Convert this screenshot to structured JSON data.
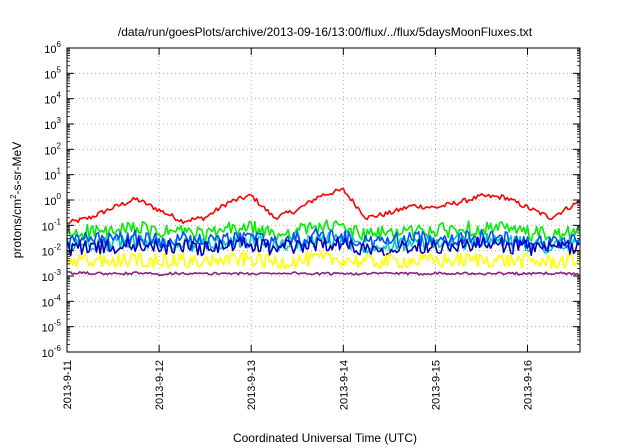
{
  "chart_data": {
    "type": "line",
    "title": "/data/run/goesPlots/archive/2013-09-16/13:00/flux/../flux/5daysMoonFluxes.txt",
    "xlabel": "Coordinated Universal Time (UTC)",
    "ylabel": "protons/cm²-s-sr-MeV",
    "ylabel_parts": {
      "before": "protons/cm",
      "sup": "2",
      "after": "-s-sr-MeV"
    },
    "yscale": "log",
    "ylim": [
      1e-06,
      1000000.0
    ],
    "y_ticks": [
      {
        "mant": "10",
        "exp": "-6"
      },
      {
        "mant": "10",
        "exp": "-5"
      },
      {
        "mant": "10",
        "exp": "-4"
      },
      {
        "mant": "10",
        "exp": "-3"
      },
      {
        "mant": "10",
        "exp": "-2"
      },
      {
        "mant": "10",
        "exp": "-1"
      },
      {
        "mant": "10",
        "exp": "0"
      },
      {
        "mant": "10",
        "exp": "1"
      },
      {
        "mant": "10",
        "exp": "2"
      },
      {
        "mant": "10",
        "exp": "3"
      },
      {
        "mant": "10",
        "exp": "4"
      },
      {
        "mant": "10",
        "exp": "5"
      },
      {
        "mant": "10",
        "exp": "6"
      }
    ],
    "x_ticks": [
      "2013-9-11",
      "2013-9-12",
      "2013-9-13",
      "2013-9-14",
      "2013-9-15",
      "2013-9-16"
    ],
    "xlim": [
      0,
      5.57
    ],
    "grid": true,
    "legend": "none",
    "series": [
      {
        "color": "#ff0000",
        "x": [
          0,
          0.25,
          0.5,
          0.75,
          1,
          1.25,
          1.5,
          1.75,
          2,
          2.25,
          2.5,
          2.75,
          3,
          3.25,
          3.5,
          3.75,
          4,
          4.25,
          4.5,
          4.75,
          5,
          5.25,
          5.57
        ],
        "values": [
          0.12,
          0.2,
          0.5,
          1.1,
          0.4,
          0.15,
          0.2,
          0.8,
          1.5,
          0.2,
          0.4,
          1.5,
          2.5,
          0.2,
          0.3,
          0.6,
          0.5,
          0.8,
          1.4,
          1.3,
          0.5,
          0.2,
          0.9
        ]
      },
      {
        "color": "#00ee00",
        "x": [
          0,
          0.25,
          0.5,
          0.75,
          1,
          1.25,
          1.5,
          1.75,
          2,
          2.25,
          2.5,
          2.75,
          3,
          3.25,
          3.5,
          3.75,
          4,
          4.25,
          4.5,
          4.75,
          5,
          5.25,
          5.57
        ],
        "values": [
          0.04,
          0.06,
          0.05,
          0.08,
          0.05,
          0.06,
          0.04,
          0.07,
          0.08,
          0.04,
          0.06,
          0.09,
          0.08,
          0.04,
          0.05,
          0.06,
          0.06,
          0.07,
          0.08,
          0.07,
          0.05,
          0.04,
          0.05
        ]
      },
      {
        "color": "#00c8c8",
        "x": [
          0,
          0.25,
          0.5,
          0.75,
          1,
          1.25,
          1.5,
          1.75,
          2,
          2.25,
          2.5,
          2.75,
          3,
          3.25,
          3.5,
          3.75,
          4,
          4.25,
          4.5,
          4.75,
          5,
          5.25,
          5.57
        ],
        "values": [
          0.015,
          0.02,
          0.018,
          0.025,
          0.018,
          0.02,
          0.015,
          0.022,
          0.025,
          0.015,
          0.02,
          0.028,
          0.025,
          0.015,
          0.018,
          0.02,
          0.02,
          0.022,
          0.025,
          0.022,
          0.018,
          0.015,
          0.02
        ]
      },
      {
        "color": "#0050ff",
        "x": [
          0,
          0.25,
          0.5,
          0.75,
          1,
          1.25,
          1.5,
          1.75,
          2,
          2.25,
          2.5,
          2.75,
          3,
          3.25,
          3.5,
          3.75,
          4,
          4.25,
          4.5,
          4.75,
          5,
          5.25,
          5.57
        ],
        "values": [
          0.02,
          0.03,
          0.025,
          0.035,
          0.025,
          0.03,
          0.02,
          0.03,
          0.035,
          0.02,
          0.03,
          0.04,
          0.035,
          0.02,
          0.025,
          0.03,
          0.03,
          0.03,
          0.035,
          0.03,
          0.025,
          0.02,
          0.025
        ]
      },
      {
        "color": "#0000c0",
        "x": [
          0,
          0.25,
          0.5,
          0.75,
          1,
          1.25,
          1.5,
          1.75,
          2,
          2.25,
          2.5,
          2.75,
          3,
          3.25,
          3.5,
          3.75,
          4,
          4.25,
          4.5,
          4.75,
          5,
          5.25,
          5.57
        ],
        "values": [
          0.012,
          0.015,
          0.013,
          0.018,
          0.013,
          0.015,
          0.012,
          0.016,
          0.018,
          0.012,
          0.015,
          0.02,
          0.018,
          0.012,
          0.013,
          0.015,
          0.015,
          0.016,
          0.018,
          0.016,
          0.013,
          0.012,
          0.015
        ]
      },
      {
        "color": "#ffff00",
        "x": [
          0,
          0.25,
          0.5,
          0.75,
          1,
          1.25,
          1.5,
          1.75,
          2,
          2.25,
          2.5,
          2.75,
          3,
          3.25,
          3.5,
          3.75,
          4,
          4.25,
          4.5,
          4.75,
          5,
          5.25,
          5.57
        ],
        "values": [
          0.0035,
          0.004,
          0.0038,
          0.0045,
          0.004,
          0.0042,
          0.0036,
          0.0044,
          0.0045,
          0.0035,
          0.004,
          0.0048,
          0.0045,
          0.0036,
          0.0038,
          0.004,
          0.004,
          0.0042,
          0.0044,
          0.0042,
          0.0038,
          0.0036,
          0.004
        ]
      },
      {
        "color": "#8b2080",
        "x": [
          0,
          0.25,
          0.5,
          0.75,
          1,
          1.25,
          1.5,
          1.75,
          2,
          2.25,
          2.5,
          2.75,
          3,
          3.25,
          3.5,
          3.75,
          4,
          4.25,
          4.5,
          4.75,
          5,
          5.25,
          5.57
        ],
        "values": [
          0.0013,
          0.0013,
          0.0012,
          0.0013,
          0.0012,
          0.0013,
          0.0012,
          0.0013,
          0.0012,
          0.0013,
          0.0013,
          0.0012,
          0.0013,
          0.0012,
          0.0013,
          0.0012,
          0.0013,
          0.0013,
          0.0012,
          0.0013,
          0.0012,
          0.0013,
          0.0012
        ]
      }
    ]
  }
}
